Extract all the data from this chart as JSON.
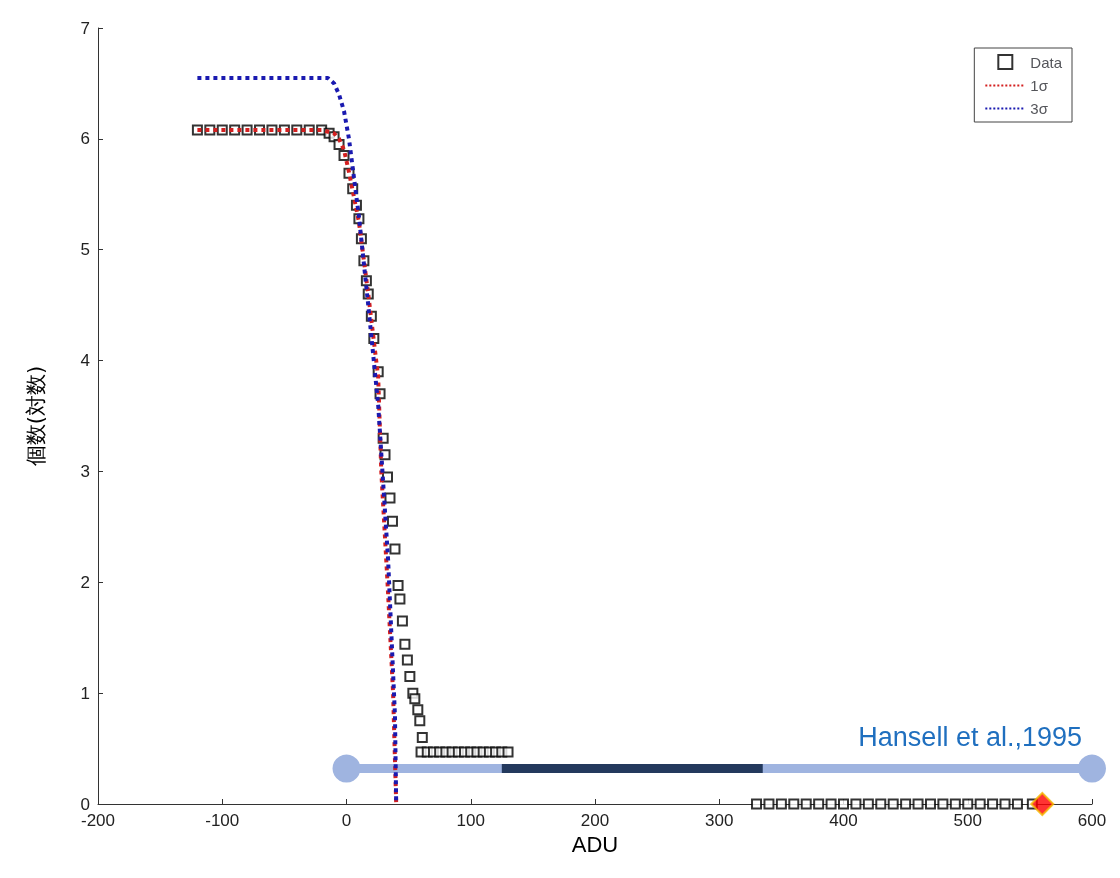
{
  "chart_data": {
    "type": "scatter",
    "xlabel": "ADU",
    "ylabel": "個数(対数)",
    "xlim": [
      -200,
      600
    ],
    "ylim": [
      0,
      7
    ],
    "xticks": [
      -200,
      -100,
      0,
      100,
      200,
      300,
      400,
      500,
      600
    ],
    "yticks": [
      0,
      1,
      2,
      3,
      4,
      5,
      6,
      7
    ],
    "grid": false,
    "legend": "top right",
    "annotations": [
      {
        "text": "Hansell et al.,1995",
        "x": 600,
        "y": 0.32
      }
    ],
    "series": [
      {
        "name": "Data",
        "marker": "square",
        "color": "#000000",
        "x": [
          -120,
          -110,
          -100,
          -90,
          -80,
          -70,
          -60,
          -50,
          -40,
          -30,
          -20,
          -14,
          -10,
          -6,
          -2,
          2,
          5,
          8,
          10,
          12,
          14,
          16,
          17.5,
          20,
          22,
          25.5,
          27,
          29.5,
          31,
          33,
          35,
          37,
          39,
          41.5,
          43,
          45,
          47,
          49,
          51,
          53.4,
          55,
          57.4,
          59,
          61,
          60,
          65,
          70,
          75,
          80,
          85,
          90,
          95,
          100,
          105,
          110,
          115,
          120,
          125,
          130,
          330,
          340,
          350,
          360,
          370,
          380,
          390,
          400,
          410,
          420,
          430,
          440,
          450,
          460,
          470,
          480,
          490,
          500,
          510,
          520,
          530,
          540,
          552
        ],
        "values": [
          6.08,
          6.08,
          6.08,
          6.08,
          6.08,
          6.08,
          6.08,
          6.08,
          6.08,
          6.08,
          6.08,
          6.05,
          6.02,
          5.95,
          5.85,
          5.69,
          5.55,
          5.4,
          5.28,
          5.1,
          4.9,
          4.72,
          4.6,
          4.4,
          4.2,
          3.9,
          3.7,
          3.3,
          3.15,
          2.95,
          2.76,
          2.55,
          2.3,
          1.97,
          1.85,
          1.65,
          1.44,
          1.3,
          1.15,
          1.0,
          0.95,
          0.85,
          0.75,
          0.6,
          0.47,
          0.47,
          0.47,
          0.47,
          0.47,
          0.47,
          0.47,
          0.47,
          0.47,
          0.47,
          0.47,
          0.47,
          0.47,
          0.47,
          0.47,
          0,
          0,
          0,
          0,
          0,
          0,
          0,
          0,
          0,
          0,
          0,
          0,
          0,
          0,
          0,
          0,
          0,
          0,
          0,
          0,
          0,
          0,
          0
        ]
      },
      {
        "name": "1σ",
        "type": "line",
        "marker": "none",
        "line_style": "dotted",
        "color": "#d42020",
        "x": [
          -120,
          -20,
          -10,
          -6,
          -2,
          2,
          10,
          17.5,
          25.5,
          28,
          33,
          37.5,
          40
        ],
        "values": [
          6.08,
          6.08,
          6.05,
          6.0,
          5.9,
          5.7,
          5.25,
          4.6,
          3.85,
          3.0,
          2.0,
          1.0,
          0
        ]
      },
      {
        "name": "3σ",
        "type": "line",
        "marker": "none",
        "line_style": "dotted",
        "color": "#1a1ab0",
        "x": [
          -120,
          -15,
          -10,
          -6,
          -2,
          2,
          10,
          17.5,
          25.5,
          33.5,
          39,
          40
        ],
        "values": [
          6.55,
          6.55,
          6.5,
          6.4,
          6.25,
          6.0,
          5.3,
          4.5,
          3.6,
          2.2,
          0.8,
          0
        ]
      },
      {
        "type": "line",
        "marker": "circle",
        "line_style": "solid",
        "color": "#9fb4e0",
        "x": [
          0,
          600
        ],
        "values": [
          0.32,
          0.32
        ]
      },
      {
        "type": "line",
        "marker": "none",
        "line_style": "solid",
        "color": "#23395d",
        "x": [
          125,
          335
        ],
        "values": [
          0.32,
          0.32
        ]
      },
      {
        "marker": "diamond",
        "color": "#ff0000",
        "x": [
          560
        ],
        "values": [
          0
        ]
      }
    ]
  }
}
